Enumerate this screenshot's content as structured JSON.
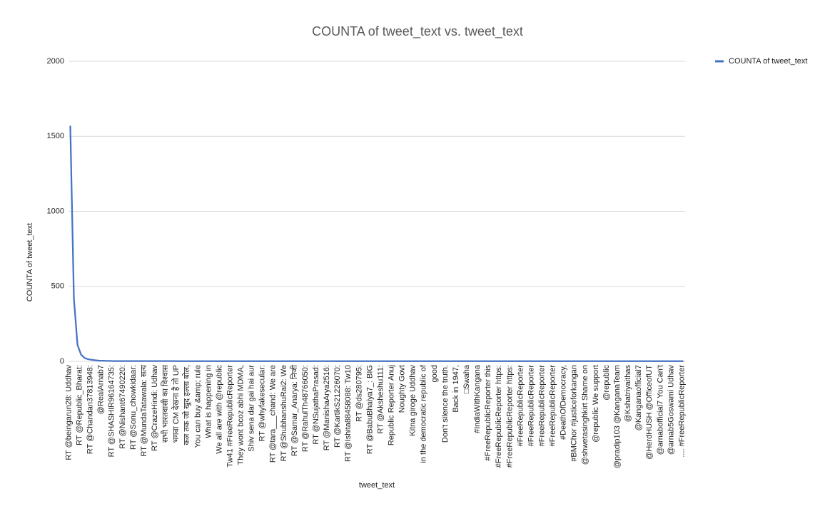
{
  "chart_data": {
    "type": "line",
    "title": "COUNTA of tweet_text vs. tweet_text",
    "x_label": "tweet_text",
    "y_label": "COUNTA of tweet_text",
    "categories": [
      "RT @beingarun28: Uddhav",
      null,
      null,
      "RT @Republic_Bharat:",
      null,
      null,
      "RT @Chandan37813948:",
      null,
      null,
      "@RealArnab7",
      null,
      null,
      "RT @SHASHIR96164735:",
      null,
      null,
      "RT @Nishant67490220:",
      null,
      null,
      "RT @Sonu_chowkidaar:",
      null,
      null,
      "RT @MundaTatawala: सत्य",
      null,
      null,
      "RT @CrazeHindi: Udhav",
      null,
      null,
      "सभी भारतवासी का विश्वास",
      null,
      null,
      "भगवा CM देखना है तो UP",
      null,
      null,
      "कल तक जो खुद हल्ला बोल,",
      null,
      null,
      "You can buy &amp; rule",
      null,
      null,
      "What is happening in",
      null,
      null,
      "We all are with @republic",
      null,
      null,
      "Tw41 #FreeRepublicReporter",
      null,
      null,
      "They wont bcoz abhi MDMA,",
      null,
      null,
      "Shiv sena dar gai hai aur",
      null,
      null,
      "RT @whyfakesecular:",
      null,
      null,
      "RT @tara___chand: We are",
      null,
      null,
      "RT @ShubhanshuRai2: We",
      null,
      null,
      "RT @Samar_Anarya: निजी",
      null,
      null,
      "RT @RahulTh48766050:",
      null,
      null,
      "RT @NSujathaPrasad:",
      null,
      null,
      "RT @ManishaArya2516:",
      null,
      null,
      "RT @KartikS21226070:",
      null,
      null,
      "RT @Ishita88458088: Tw10",
      null,
      null,
      "RT @ds280795:",
      null,
      null,
      "RT @BabuBhaiya7_: BIG",
      null,
      null,
      "RT @Aksheshu111:",
      null,
      null,
      "Republic Reporter Anuj",
      null,
      null,
      "Noughty Govt",
      null,
      null,
      "Kitna giroge Uddhav",
      null,
      null,
      "in the democratic republic of",
      null,
      null,
      "good",
      null,
      null,
      "Don't silence the truth.",
      null,
      null,
      "Back in 1947,",
      null,
      null,
      "□Swaha",
      null,
      null,
      "#IndiaWithKangana",
      null,
      null,
      "#FreeRepublicReporter this",
      null,
      null,
      "#FreeRepublicReporter https:",
      null,
      null,
      "#FreeRepublicReporter https:",
      null,
      null,
      "#FreeRepublicReporter",
      null,
      null,
      "#FreeRepublicReporter",
      null,
      null,
      "#FreeRepublicReporter",
      null,
      null,
      "#FreeRepublicReporter",
      null,
      null,
      "#DeathOfDemocracy,",
      null,
      null,
      "#BMChor #justiceforkangan",
      null,
      null,
      "@shwetasinghkirt Shame on",
      null,
      null,
      "@republic We support",
      null,
      null,
      "@republic",
      null,
      null,
      "@pradip103 @KanganaTeam",
      null,
      null,
      "@Kshatriyaithas",
      null,
      null,
      "@Kanganaofficial7",
      null,
      null,
      "@HerdHUSH @OfficeofUT",
      null,
      null,
      "@arnabofficial7 You Can't",
      null,
      null,
      "@arnab5Goswami Udhav",
      null,
      null,
      ".... #FreeRepublicReporter"
    ],
    "series": [
      {
        "name": "COUNTA of tweet_text",
        "color": "#4472c4",
        "values": [
          1570,
          420,
          110,
          45,
          22,
          14,
          10,
          7,
          5,
          4,
          3,
          3,
          2,
          2,
          2,
          2,
          2,
          2,
          2,
          2,
          2,
          2,
          2,
          2,
          2,
          2,
          2,
          2,
          2,
          2,
          1,
          1,
          1,
          1,
          1,
          1,
          1,
          1,
          1,
          1,
          1,
          1,
          1,
          1,
          1,
          1,
          1,
          1,
          1,
          1,
          1,
          1,
          1,
          1,
          1,
          1,
          1,
          1,
          1,
          1,
          1,
          1,
          1,
          1,
          1,
          1,
          1,
          1,
          1,
          1,
          1,
          1,
          1,
          1,
          1,
          1,
          1,
          1,
          1,
          1,
          1,
          1,
          1,
          1,
          1,
          1,
          1,
          1,
          1,
          1,
          1,
          1,
          1,
          1,
          1,
          1,
          1,
          1,
          1,
          1,
          1,
          1,
          1,
          1,
          1,
          1,
          1,
          1,
          1,
          1,
          1,
          1,
          1,
          1,
          1,
          1,
          1,
          1,
          1,
          1,
          1,
          1,
          1,
          1,
          1,
          1,
          1,
          1,
          1,
          1,
          1,
          1,
          1,
          1,
          1,
          1,
          1,
          1,
          1,
          1,
          1,
          1,
          1,
          1,
          1,
          1,
          1,
          1,
          1,
          1,
          1,
          1,
          1,
          1,
          1,
          1,
          1,
          1,
          1,
          1,
          1,
          1,
          1,
          1,
          1,
          1,
          1,
          1,
          1,
          1,
          1,
          1
        ]
      }
    ],
    "ylim": [
      0,
      2000
    ],
    "yticks": [
      0,
      500,
      1000,
      1500,
      2000
    ],
    "grid": true,
    "legend": "right"
  }
}
